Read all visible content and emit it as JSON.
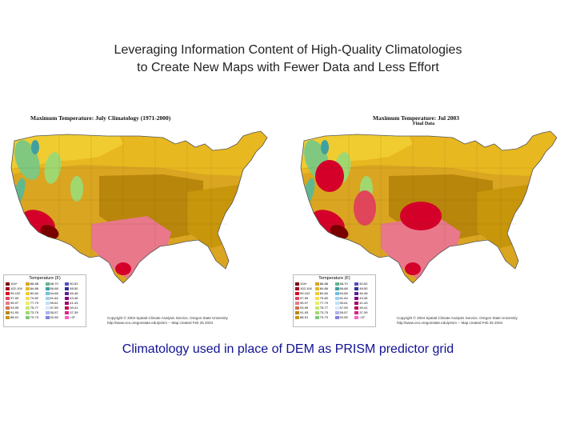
{
  "slide": {
    "title_line1": "Leveraging Information Content of High-Quality Climatologies",
    "title_line2": "to Create New Maps with Fewer Data and Less Effort",
    "caption": "Climatology used in place of DEM as PRISM predictor grid"
  },
  "maps": [
    {
      "title": "Maximum Temperature: July Climatology (1971-2000)",
      "subtitle": "",
      "legend_title": "Temperature (F)",
      "copyright_line1": "Copyright © 2004 Spatial Climate Analysis Service, Oregon State University",
      "copyright_line2": "http://www.ocs.oregonstate.edu/prism -- Map created Feb 25 2004",
      "hot_extent": 0.45
    },
    {
      "title": "Maximum Temperature: Jul 2003",
      "subtitle": "Final Data",
      "legend_title": "Temperature (F)",
      "copyright_line1": "Copyright © 2004 Spatial Climate Analysis Service, Oregon State University",
      "copyright_line2": "http://www.ocs.oregonstate.edu/prism -- Map created Feb 25 2004",
      "hot_extent": 1.0
    }
  ],
  "legend": [
    {
      "label": "104+",
      "color": "#7a0000"
    },
    {
      "label": "102-104",
      "color": "#a0001a"
    },
    {
      "label": "99-102",
      "color": "#d4002a"
    },
    {
      "label": "97-99",
      "color": "#e0455a"
    },
    {
      "label": "95-97",
      "color": "#e8788a"
    },
    {
      "label": "93-95",
      "color": "#d0704a"
    },
    {
      "label": "91-93",
      "color": "#b8860b"
    },
    {
      "label": "88-91",
      "color": "#c8960a"
    },
    {
      "label": "86-88",
      "color": "#daa520"
    },
    {
      "label": "84-86",
      "color": "#e8b820"
    },
    {
      "label": "82-84",
      "color": "#f0cc30"
    },
    {
      "label": "79-82",
      "color": "#f5dd50"
    },
    {
      "label": "77-79",
      "color": "#e8f060"
    },
    {
      "label": "75-77",
      "color": "#c8e870"
    },
    {
      "label": "73-75",
      "color": "#a0d870"
    },
    {
      "label": "70-73",
      "color": "#80c880"
    },
    {
      "label": "68-70",
      "color": "#60b890"
    },
    {
      "label": "66-68",
      "color": "#40a0a0"
    },
    {
      "label": "64-66",
      "color": "#70c0e0"
    },
    {
      "label": "61-64",
      "color": "#a0d0f0"
    },
    {
      "label": "59-61",
      "color": "#c0e0f8"
    },
    {
      "label": "57-59",
      "color": "#d8e8ff"
    },
    {
      "label": "55-57",
      "color": "#b0b0f0"
    },
    {
      "label": "52-55",
      "color": "#8080e0"
    },
    {
      "label": "50-52",
      "color": "#5050c0"
    },
    {
      "label": "48-50",
      "color": "#3030a0"
    },
    {
      "label": "46-48",
      "color": "#602090"
    },
    {
      "label": "43-46",
      "color": "#800080"
    },
    {
      "label": "41-43",
      "color": "#a00060"
    },
    {
      "label": "39-41",
      "color": "#c00050"
    },
    {
      "label": "37-39",
      "color": "#e0208a"
    },
    {
      "label": "<37",
      "color": "#ff60c0"
    }
  ]
}
